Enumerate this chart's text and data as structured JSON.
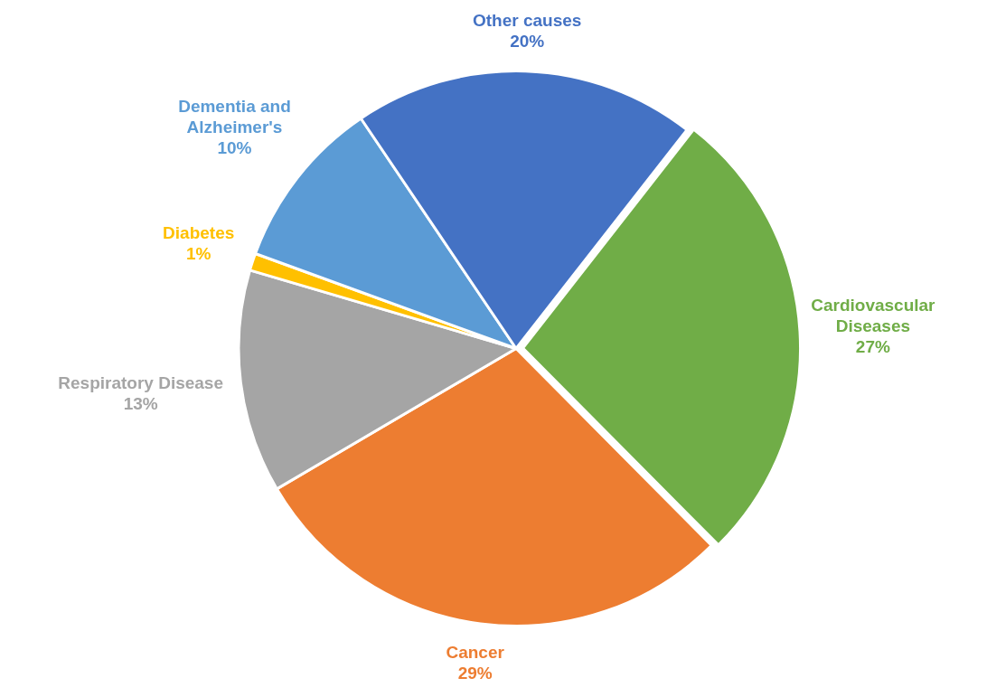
{
  "chart_data": {
    "type": "pie",
    "categories": [
      "Cardiovascular Diseases",
      "Cancer",
      "Respiratory Disease",
      "Diabetes",
      "Dementia and Alzheimer's",
      "Other causes"
    ],
    "values": [
      27,
      29,
      13,
      1,
      10,
      20
    ],
    "value_labels": [
      "27%",
      "29%",
      "13%",
      "1%",
      "10%",
      "20%"
    ],
    "colors": [
      "#70ad47",
      "#ed7d31",
      "#a5a5a5",
      "#ffc000",
      "#5b9bd5",
      "#4472c4"
    ],
    "legend": false
  }
}
